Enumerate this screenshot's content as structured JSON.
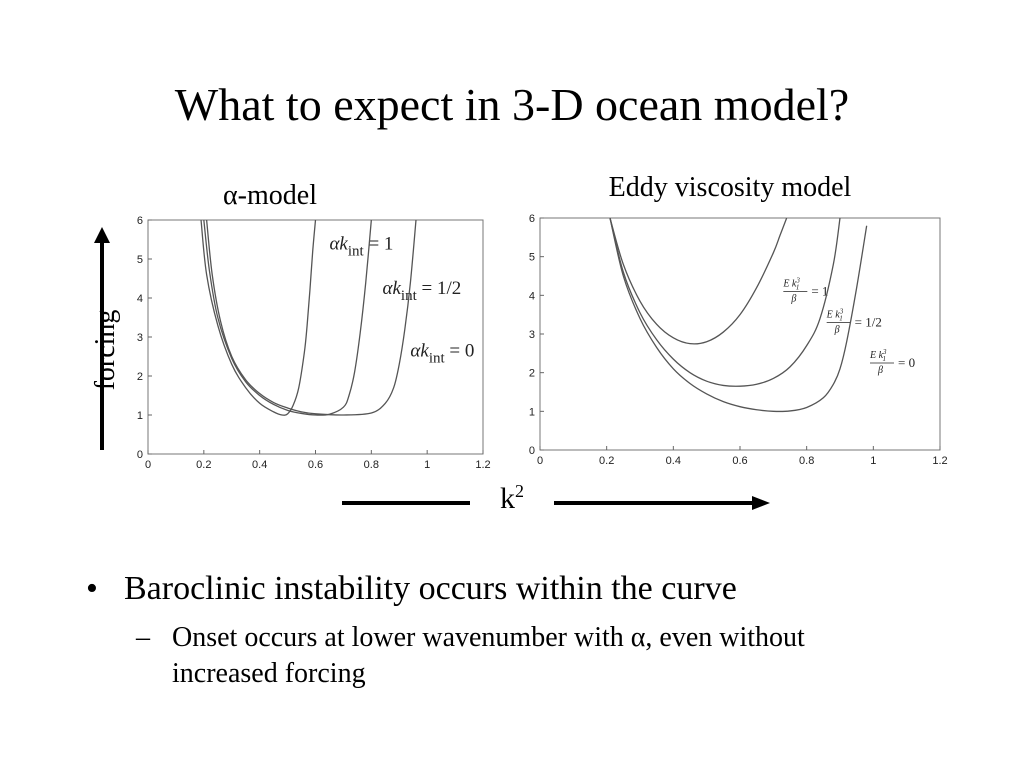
{
  "slide": {
    "title": "What to expect in 3-D ocean model?",
    "bullets": [
      {
        "text": "Baroclinic instability occurs within the curve",
        "sub": "Onset occurs at lower wavenumber with α, even without increased forcing"
      }
    ],
    "bullet_symbol": "•",
    "sub_bullet_symbol": "–"
  },
  "arrows": {
    "vertical_label": "forcing",
    "horizontal_label_base": "k",
    "horizontal_label_sup": "2"
  },
  "chart_data": [
    {
      "type": "line",
      "title": "α-model",
      "xlabel": "",
      "ylabel": "",
      "xlim": [
        0,
        1.2
      ],
      "ylim": [
        0,
        6
      ],
      "xticks": [
        "0",
        "0.2",
        "0.4",
        "0.6",
        "0.8",
        "1",
        "1.2"
      ],
      "yticks": [
        "0",
        "1",
        "2",
        "3",
        "4",
        "5",
        "6"
      ],
      "series": [
        {
          "name": "αk_int = 1",
          "label_prefix": "αk",
          "label_sub": "int",
          "label_suffix": " = 1",
          "x": [
            0.19,
            0.21,
            0.25,
            0.3,
            0.35,
            0.4,
            0.45,
            0.48,
            0.5,
            0.52,
            0.54,
            0.56,
            0.57,
            0.58,
            0.59,
            0.6
          ],
          "y": [
            6,
            4.6,
            3.3,
            2.3,
            1.7,
            1.3,
            1.08,
            1.0,
            1.03,
            1.25,
            1.7,
            2.6,
            3.3,
            4.2,
            5.2,
            6
          ]
        },
        {
          "name": "αk_int = 1/2",
          "label_prefix": "αk",
          "label_sub": "int",
          "label_suffix": " = 1/2",
          "x": [
            0.2,
            0.22,
            0.25,
            0.3,
            0.35,
            0.4,
            0.45,
            0.5,
            0.55,
            0.6,
            0.65,
            0.7,
            0.72,
            0.74,
            0.76,
            0.78,
            0.8
          ],
          "y": [
            6,
            4.7,
            3.5,
            2.45,
            1.85,
            1.5,
            1.27,
            1.12,
            1.04,
            1.0,
            1.02,
            1.2,
            1.5,
            2.1,
            3.1,
            4.4,
            6
          ]
        },
        {
          "name": "αk_int = 0",
          "label_prefix": "αk",
          "label_sub": "int",
          "label_suffix": " = 0",
          "x": [
            0.21,
            0.23,
            0.26,
            0.3,
            0.35,
            0.4,
            0.45,
            0.5,
            0.55,
            0.6,
            0.7,
            0.8,
            0.85,
            0.88,
            0.9,
            0.92,
            0.94,
            0.96
          ],
          "y": [
            6,
            4.6,
            3.4,
            2.5,
            1.9,
            1.55,
            1.32,
            1.18,
            1.08,
            1.03,
            1.0,
            1.05,
            1.3,
            1.7,
            2.3,
            3.2,
            4.4,
            6
          ]
        }
      ]
    },
    {
      "type": "line",
      "title": "Eddy viscosity model",
      "xlabel": "",
      "ylabel": "",
      "xlim": [
        0,
        1.2
      ],
      "ylim": [
        0,
        6
      ],
      "xticks": [
        "0",
        "0.2",
        "0.4",
        "0.6",
        "0.8",
        "1",
        "1.2"
      ],
      "yticks": [
        "0",
        "1",
        "2",
        "3",
        "4",
        "5",
        "6"
      ],
      "series": [
        {
          "name": "E k_1^3/β = 1",
          "label_num": "E k",
          "label_num_sup": "3",
          "label_num_sub": "1",
          "label_den": "β",
          "label_rhs": "= 1",
          "x": [
            0.21,
            0.25,
            0.3,
            0.35,
            0.4,
            0.45,
            0.5,
            0.55,
            0.6,
            0.65,
            0.7,
            0.72,
            0.74
          ],
          "y": [
            6,
            4.8,
            3.85,
            3.25,
            2.9,
            2.75,
            2.8,
            3.05,
            3.5,
            4.2,
            5.1,
            5.55,
            6
          ]
        },
        {
          "name": "E k_1^3/β = 1/2",
          "label_num": "E k",
          "label_num_sup": "3",
          "label_num_sub": "1",
          "label_den": "β",
          "label_rhs": "= 1/2",
          "x": [
            0.21,
            0.25,
            0.3,
            0.35,
            0.4,
            0.45,
            0.5,
            0.55,
            0.6,
            0.65,
            0.7,
            0.75,
            0.8,
            0.84,
            0.88,
            0.9
          ],
          "y": [
            6,
            4.6,
            3.55,
            2.85,
            2.35,
            2.0,
            1.78,
            1.67,
            1.65,
            1.7,
            1.85,
            2.15,
            2.7,
            3.4,
            4.8,
            6
          ]
        },
        {
          "name": "E k_1^3/β = 0",
          "label_num": "E k",
          "label_num_sup": "3",
          "label_num_sub": "1",
          "label_den": "β",
          "label_rhs": "= 0",
          "x": [
            0.21,
            0.25,
            0.3,
            0.35,
            0.4,
            0.45,
            0.5,
            0.55,
            0.6,
            0.65,
            0.7,
            0.75,
            0.8,
            0.85,
            0.88,
            0.9,
            0.92,
            0.95,
            0.98
          ],
          "y": [
            6,
            4.5,
            3.4,
            2.65,
            2.1,
            1.72,
            1.45,
            1.25,
            1.12,
            1.04,
            1.0,
            1.01,
            1.1,
            1.35,
            1.7,
            2.1,
            2.8,
            4.2,
            5.8
          ]
        }
      ]
    }
  ]
}
